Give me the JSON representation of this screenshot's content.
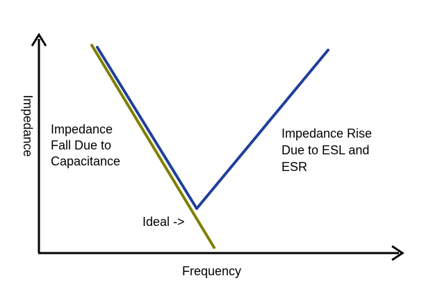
{
  "axes": {
    "x_label": "Frequency",
    "y_label": "Impedance"
  },
  "annotations": {
    "fall": [
      "Impedance",
      "Fall Due to",
      "Capacitance"
    ],
    "rise": [
      "Impedance Rise",
      "Due to ESL and",
      "ESR"
    ],
    "ideal": "Ideal ->"
  },
  "colors": {
    "axis": "#000000",
    "real_curve": "#1f3f9a",
    "ideal_curve": "#7f7f00",
    "background": "#ffffff"
  },
  "curves": [
    {
      "name": "real-impedance-curve",
      "color_key": "real_curve"
    },
    {
      "name": "ideal-impedance-curve",
      "color_key": "ideal_curve"
    }
  ]
}
